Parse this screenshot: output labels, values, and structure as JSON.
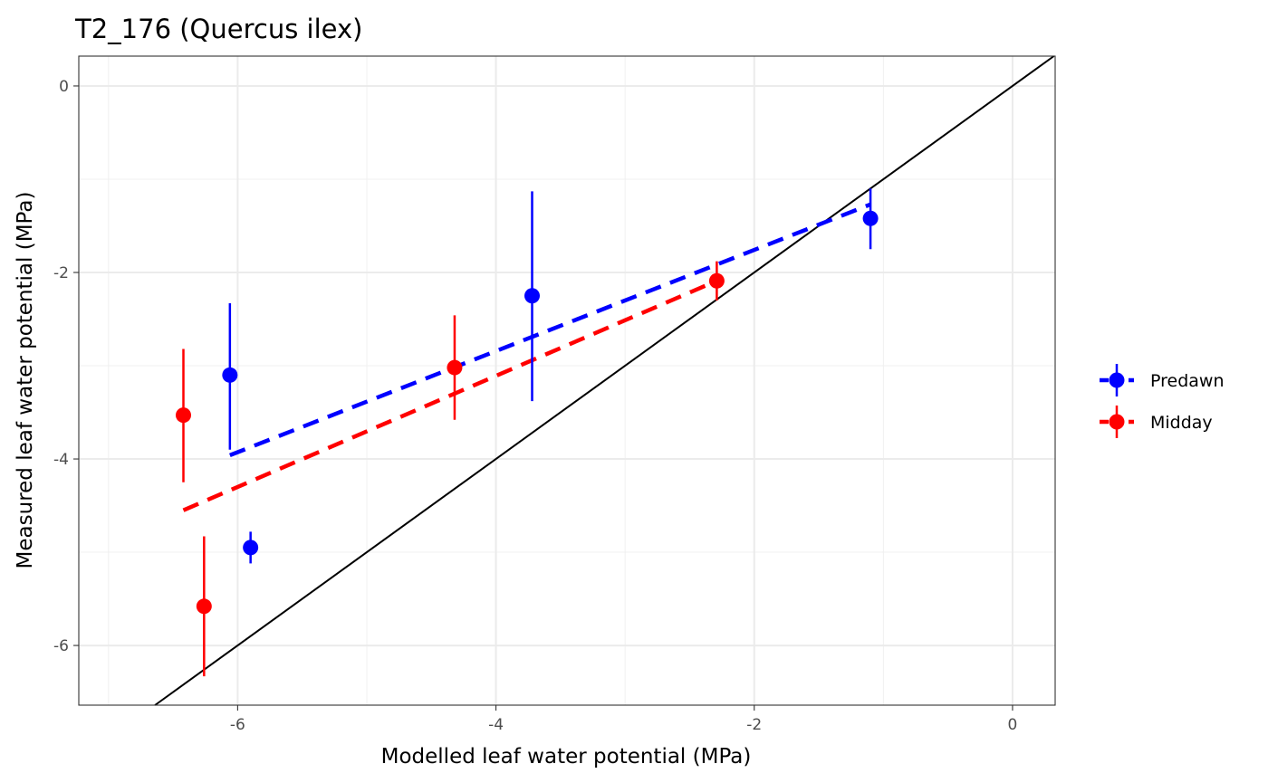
{
  "chart_data": {
    "type": "scatter",
    "title": "T2_176 (Quercus ilex)",
    "xlabel": "Modelled leaf water potential (MPa)",
    "ylabel": "Measured leaf water potential (MPa)",
    "xlim": [
      -7.23,
      0.33
    ],
    "ylim": [
      -6.64,
      0.32
    ],
    "xticks": [
      -6,
      -4,
      -2,
      0
    ],
    "yticks": [
      -6,
      -4,
      -2,
      0
    ],
    "xtick_labels": [
      "-6",
      "-4",
      "-2",
      "0"
    ],
    "ytick_labels": [
      "-6",
      "-4",
      "-2",
      "0"
    ],
    "grid": true,
    "legend_position": "right",
    "reference_line": {
      "type": "1:1",
      "color": "#000000"
    },
    "series": [
      {
        "name": "Predawn",
        "color": "#0000FF",
        "points": [
          {
            "x": -6.06,
            "y": -3.1,
            "ymin": -3.9,
            "ymax": -2.33
          },
          {
            "x": -5.9,
            "y": -4.95,
            "ymin": -5.12,
            "ymax": -4.78
          },
          {
            "x": -3.72,
            "y": -2.25,
            "ymin": -3.38,
            "ymax": -1.13
          },
          {
            "x": -1.1,
            "y": -1.42,
            "ymin": -1.75,
            "ymax": -1.1
          }
        ],
        "fit_line": {
          "x": [
            -6.06,
            -1.1
          ],
          "y": [
            -3.96,
            -1.27
          ]
        }
      },
      {
        "name": "Midday",
        "color": "#FF0000",
        "points": [
          {
            "x": -6.42,
            "y": -3.53,
            "ymin": -4.25,
            "ymax": -2.82
          },
          {
            "x": -6.26,
            "y": -5.58,
            "ymin": -6.33,
            "ymax": -4.83
          },
          {
            "x": -4.32,
            "y": -3.02,
            "ymin": -3.58,
            "ymax": -2.46
          },
          {
            "x": -2.29,
            "y": -2.09,
            "ymin": -2.3,
            "ymax": -1.88
          }
        ],
        "fit_line": {
          "x": [
            -6.42,
            -2.29
          ],
          "y": [
            -4.55,
            -2.09
          ]
        }
      }
    ]
  }
}
